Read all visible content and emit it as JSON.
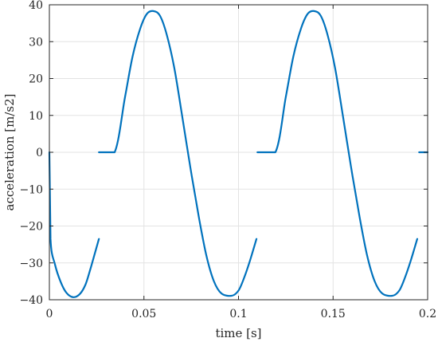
{
  "chart_data": {
    "type": "line",
    "title": "",
    "xlabel": "time [s]",
    "ylabel": "acceleration [m/s2]",
    "xlim": [
      0,
      0.2
    ],
    "ylim": [
      -40,
      40
    ],
    "xticks": [
      0,
      0.05,
      0.1,
      0.15,
      0.2
    ],
    "xtick_labels": [
      "0",
      "0.05",
      "0.1",
      "0.15",
      "0.2"
    ],
    "yticks": [
      -40,
      -30,
      -20,
      -10,
      0,
      10,
      20,
      30,
      40
    ],
    "ytick_labels": [
      "−40",
      "−30",
      "−20",
      "−10",
      "0",
      "10",
      "20",
      "30",
      "40"
    ],
    "grid": true,
    "line_color": "#0072BD",
    "series": [
      {
        "segments": [
          [
            [
              0,
              0
            ],
            [
              0.0006,
              -23.5
            ],
            [
              0.003,
              -30.5
            ],
            [
              0.006,
              -35.2
            ],
            [
              0.009,
              -38.1
            ],
            [
              0.0125,
              -39.3
            ],
            [
              0.016,
              -38.5
            ],
            [
              0.019,
              -36
            ],
            [
              0.0215,
              -32
            ],
            [
              0.024,
              -27.5
            ],
            [
              0.0262,
              -23.5
            ]
          ],
          [
            [
              0.0262,
              0
            ],
            [
              0.0345,
              0
            ],
            [
              0.04,
              15
            ],
            [
              0.044,
              26
            ],
            [
              0.048,
              33.5
            ],
            [
              0.0515,
              37.5
            ],
            [
              0.055,
              38.3
            ],
            [
              0.0585,
              37
            ],
            [
              0.062,
              32
            ],
            [
              0.066,
              23
            ],
            [
              0.07,
              10.5
            ],
            [
              0.0745,
              -4
            ],
            [
              0.079,
              -17.5
            ],
            [
              0.083,
              -28
            ],
            [
              0.087,
              -35
            ],
            [
              0.091,
              -38.3
            ],
            [
              0.0965,
              -38.9
            ],
            [
              0.1,
              -37.5
            ],
            [
              0.103,
              -34
            ],
            [
              0.106,
              -29.5
            ],
            [
              0.1095,
              -23.5
            ]
          ],
          [
            [
              0.11,
              0
            ],
            [
              0.1195,
              0
            ],
            [
              0.125,
              15
            ],
            [
              0.129,
              26
            ],
            [
              0.133,
              33.5
            ],
            [
              0.1365,
              37.5
            ],
            [
              0.14,
              38.3
            ],
            [
              0.1435,
              37
            ],
            [
              0.147,
              32
            ],
            [
              0.151,
              23
            ],
            [
              0.155,
              10.5
            ],
            [
              0.1595,
              -4
            ],
            [
              0.164,
              -17.5
            ],
            [
              0.168,
              -28
            ],
            [
              0.172,
              -35
            ],
            [
              0.176,
              -38.3
            ],
            [
              0.1815,
              -38.9
            ],
            [
              0.185,
              -37.5
            ],
            [
              0.188,
              -34
            ],
            [
              0.191,
              -29.5
            ],
            [
              0.1945,
              -23.5
            ]
          ],
          [
            [
              0.1955,
              0
            ],
            [
              0.2,
              0
            ]
          ]
        ]
      }
    ]
  }
}
